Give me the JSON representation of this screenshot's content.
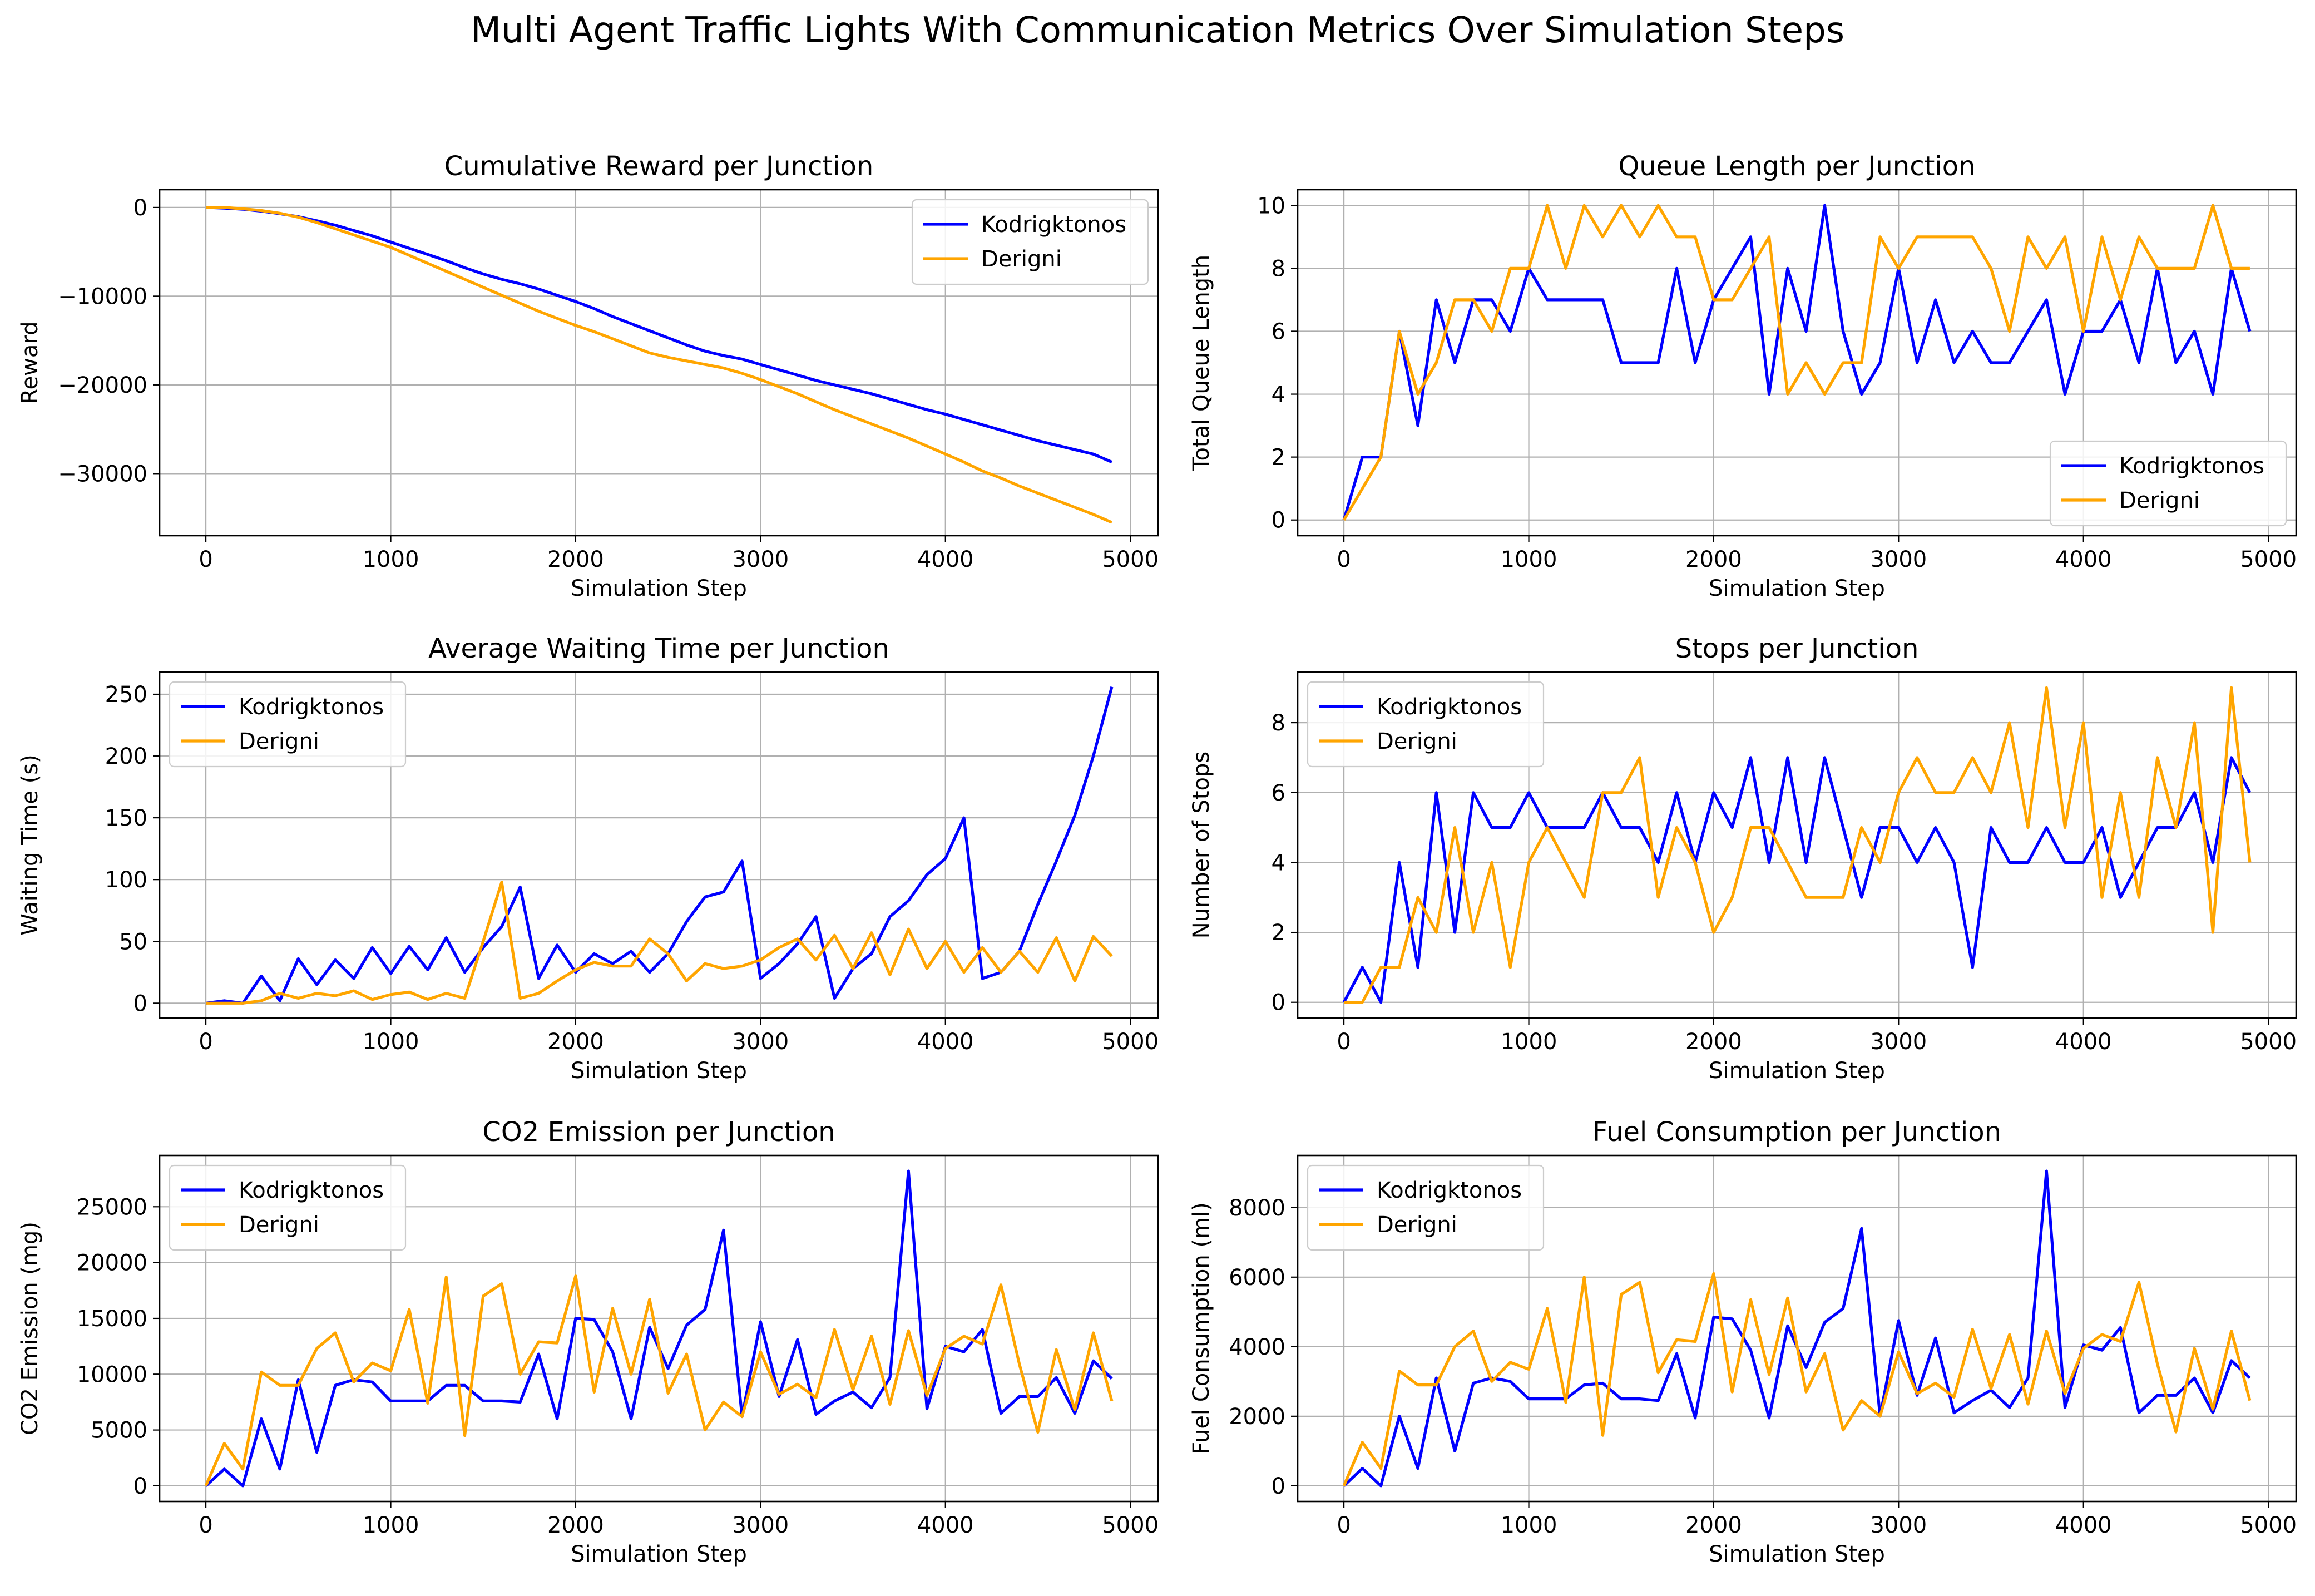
{
  "figure": {
    "suptitle": "Multi Agent Traffic Lights With Communication Metrics Over Simulation Steps"
  },
  "colors": {
    "series_a": "#0000ff",
    "series_b": "#ffa500",
    "grid": "#b0b0b0"
  },
  "chart_data": [
    {
      "type": "line",
      "title": "Cumulative Reward per Junction",
      "xlabel": "Simulation Step",
      "ylabel": "Reward",
      "xlim": [
        -250,
        5150
      ],
      "ylim": [
        -37000,
        2000
      ],
      "xticks": [
        0,
        1000,
        2000,
        3000,
        4000,
        5000
      ],
      "yticks": [
        0,
        -10000,
        -20000,
        -30000
      ],
      "grid": true,
      "legend": "top-right",
      "x": [
        0,
        100,
        200,
        300,
        400,
        500,
        600,
        700,
        800,
        900,
        1000,
        1100,
        1200,
        1300,
        1400,
        1500,
        1600,
        1700,
        1800,
        1900,
        2000,
        2100,
        2200,
        2300,
        2400,
        2500,
        2600,
        2700,
        2800,
        2900,
        3000,
        3100,
        3200,
        3300,
        3400,
        3500,
        3600,
        3700,
        3800,
        3900,
        4000,
        4100,
        4200,
        4300,
        4400,
        4500,
        4600,
        4700,
        4800,
        4900
      ],
      "series": [
        {
          "name": "Kodrigktonos",
          "color": "#0000ff",
          "values": [
            0,
            -80,
            -200,
            -420,
            -700,
            -1050,
            -1500,
            -2000,
            -2600,
            -3200,
            -3900,
            -4600,
            -5300,
            -6000,
            -6800,
            -7500,
            -8100,
            -8600,
            -9200,
            -9900,
            -10600,
            -11400,
            -12300,
            -13100,
            -13900,
            -14700,
            -15500,
            -16200,
            -16700,
            -17100,
            -17700,
            -18300,
            -18900,
            -19500,
            -20000,
            -20500,
            -21000,
            -21600,
            -22200,
            -22800,
            -23300,
            -23900,
            -24500,
            -25100,
            -25700,
            -26300,
            -26800,
            -27300,
            -27800,
            -28700
          ]
        },
        {
          "name": "Derigni",
          "color": "#ffa500",
          "values": [
            0,
            0,
            -150,
            -350,
            -650,
            -1100,
            -1700,
            -2400,
            -3100,
            -3800,
            -4500,
            -5400,
            -6300,
            -7200,
            -8100,
            -9000,
            -9900,
            -10800,
            -11700,
            -12500,
            -13300,
            -14000,
            -14800,
            -15600,
            -16400,
            -16900,
            -17300,
            -17700,
            -18100,
            -18700,
            -19400,
            -20200,
            -21000,
            -21900,
            -22800,
            -23600,
            -24400,
            -25200,
            -26000,
            -26900,
            -27800,
            -28700,
            -29700,
            -30500,
            -31400,
            -32200,
            -33000,
            -33800,
            -34600,
            -35500
          ]
        }
      ]
    },
    {
      "type": "line",
      "title": "Queue Length per Junction",
      "xlabel": "Simulation Step",
      "ylabel": "Total Queue Length",
      "xlim": [
        -250,
        5150
      ],
      "ylim": [
        -0.5,
        10.5
      ],
      "xticks": [
        0,
        1000,
        2000,
        3000,
        4000,
        5000
      ],
      "yticks": [
        0,
        2,
        4,
        6,
        8,
        10
      ],
      "grid": true,
      "legend": "bottom-right",
      "x": [
        0,
        100,
        200,
        300,
        400,
        500,
        600,
        700,
        800,
        900,
        1000,
        1100,
        1200,
        1300,
        1400,
        1500,
        1600,
        1700,
        1800,
        1900,
        2000,
        2100,
        2200,
        2300,
        2400,
        2500,
        2600,
        2700,
        2800,
        2900,
        3000,
        3100,
        3200,
        3300,
        3400,
        3500,
        3600,
        3700,
        3800,
        3900,
        4000,
        4100,
        4200,
        4300,
        4400,
        4500,
        4600,
        4700,
        4800,
        4900
      ],
      "series": [
        {
          "name": "Kodrigktonos",
          "color": "#0000ff",
          "values": [
            0,
            2,
            2,
            6,
            3,
            7,
            5,
            7,
            7,
            6,
            8,
            7,
            7,
            7,
            7,
            5,
            5,
            5,
            8,
            5,
            7,
            8,
            9,
            4,
            8,
            6,
            10,
            6,
            4,
            5,
            8,
            5,
            7,
            5,
            6,
            5,
            5,
            6,
            7,
            4,
            6,
            6,
            7,
            5,
            8,
            5,
            6,
            4,
            8,
            6
          ]
        },
        {
          "name": "Derigni",
          "color": "#ffa500",
          "values": [
            0,
            1,
            2,
            6,
            4,
            5,
            7,
            7,
            6,
            8,
            8,
            10,
            8,
            10,
            9,
            10,
            9,
            10,
            9,
            9,
            7,
            7,
            8,
            9,
            4,
            5,
            4,
            5,
            5,
            9,
            8,
            9,
            9,
            9,
            9,
            8,
            6,
            9,
            8,
            9,
            6,
            9,
            7,
            9,
            8,
            8,
            8,
            10,
            8,
            8
          ]
        }
      ]
    },
    {
      "type": "line",
      "title": "Average Waiting Time per Junction",
      "xlabel": "Simulation Step",
      "ylabel": "Waiting Time (s)",
      "xlim": [
        -250,
        5150
      ],
      "ylim": [
        -12,
        268
      ],
      "xticks": [
        0,
        1000,
        2000,
        3000,
        4000,
        5000
      ],
      "yticks": [
        0,
        50,
        100,
        150,
        200,
        250
      ],
      "grid": true,
      "legend": "top-left",
      "x": [
        0,
        100,
        200,
        300,
        400,
        500,
        600,
        700,
        800,
        900,
        1000,
        1100,
        1200,
        1300,
        1400,
        1500,
        1600,
        1700,
        1800,
        1900,
        2000,
        2100,
        2200,
        2300,
        2400,
        2500,
        2600,
        2700,
        2800,
        2900,
        3000,
        3100,
        3200,
        3300,
        3400,
        3500,
        3600,
        3700,
        3800,
        3900,
        4000,
        4100,
        4200,
        4300,
        4400,
        4500,
        4600,
        4700,
        4800,
        4900
      ],
      "series": [
        {
          "name": "Kodrigktonos",
          "color": "#0000ff",
          "values": [
            0,
            2,
            0,
            22,
            2,
            36,
            15,
            35,
            20,
            45,
            24,
            46,
            27,
            53,
            25,
            45,
            62,
            94,
            20,
            47,
            25,
            40,
            32,
            42,
            25,
            40,
            66,
            86,
            90,
            115,
            20,
            32,
            48,
            70,
            4,
            28,
            40,
            70,
            83,
            104,
            117,
            150,
            20,
            25,
            42,
            80,
            115,
            152,
            200,
            256
          ]
        },
        {
          "name": "Derigni",
          "color": "#ffa500",
          "values": [
            0,
            0,
            0,
            2,
            8,
            4,
            8,
            6,
            10,
            3,
            7,
            9,
            3,
            8,
            4,
            50,
            98,
            4,
            8,
            18,
            27,
            33,
            30,
            30,
            52,
            40,
            18,
            32,
            28,
            30,
            35,
            45,
            52,
            35,
            55,
            28,
            57,
            23,
            60,
            28,
            50,
            25,
            45,
            25,
            42,
            25,
            53,
            18,
            54,
            38
          ]
        }
      ]
    },
    {
      "type": "line",
      "title": "Stops per Junction",
      "xlabel": "Simulation Step",
      "ylabel": "Number of Stops",
      "xlim": [
        -250,
        5150
      ],
      "ylim": [
        -0.45,
        9.45
      ],
      "xticks": [
        0,
        1000,
        2000,
        3000,
        4000,
        5000
      ],
      "yticks": [
        0,
        2,
        4,
        6,
        8
      ],
      "grid": true,
      "legend": "top-left",
      "x": [
        0,
        100,
        200,
        300,
        400,
        500,
        600,
        700,
        800,
        900,
        1000,
        1100,
        1200,
        1300,
        1400,
        1500,
        1600,
        1700,
        1800,
        1900,
        2000,
        2100,
        2200,
        2300,
        2400,
        2500,
        2600,
        2700,
        2800,
        2900,
        3000,
        3100,
        3200,
        3300,
        3400,
        3500,
        3600,
        3700,
        3800,
        3900,
        4000,
        4100,
        4200,
        4300,
        4400,
        4500,
        4600,
        4700,
        4800,
        4900
      ],
      "series": [
        {
          "name": "Kodrigktonos",
          "color": "#0000ff",
          "values": [
            0,
            1,
            0,
            4,
            1,
            6,
            2,
            6,
            5,
            5,
            6,
            5,
            5,
            5,
            6,
            5,
            5,
            4,
            6,
            4,
            6,
            5,
            7,
            4,
            7,
            4,
            7,
            5,
            3,
            5,
            5,
            4,
            5,
            4,
            1,
            5,
            4,
            4,
            5,
            4,
            4,
            5,
            3,
            4,
            5,
            5,
            6,
            4,
            7,
            6
          ]
        },
        {
          "name": "Derigni",
          "color": "#ffa500",
          "values": [
            0,
            0,
            1,
            1,
            3,
            2,
            5,
            2,
            4,
            1,
            4,
            5,
            4,
            3,
            6,
            6,
            7,
            3,
            5,
            4,
            2,
            3,
            5,
            5,
            4,
            3,
            3,
            3,
            5,
            4,
            6,
            7,
            6,
            6,
            7,
            6,
            8,
            5,
            9,
            5,
            8,
            3,
            6,
            3,
            7,
            5,
            8,
            2,
            9,
            4
          ]
        }
      ]
    },
    {
      "type": "line",
      "title": "CO2 Emission per Junction",
      "xlabel": "Simulation Step",
      "ylabel": "CO2 Emission (mg)",
      "xlim": [
        -250,
        5150
      ],
      "ylim": [
        -1400,
        29600
      ],
      "xticks": [
        0,
        1000,
        2000,
        3000,
        4000,
        5000
      ],
      "yticks": [
        0,
        5000,
        10000,
        15000,
        20000,
        25000
      ],
      "grid": true,
      "legend": "top-left",
      "x": [
        0,
        100,
        200,
        300,
        400,
        500,
        600,
        700,
        800,
        900,
        1000,
        1100,
        1200,
        1300,
        1400,
        1500,
        1600,
        1700,
        1800,
        1900,
        2000,
        2100,
        2200,
        2300,
        2400,
        2500,
        2600,
        2700,
        2800,
        2900,
        3000,
        3100,
        3200,
        3300,
        3400,
        3500,
        3600,
        3700,
        3800,
        3900,
        4000,
        4100,
        4200,
        4300,
        4400,
        4500,
        4600,
        4700,
        4800,
        4900
      ],
      "series": [
        {
          "name": "Kodrigktonos",
          "color": "#0000ff",
          "values": [
            0,
            1500,
            0,
            6000,
            1500,
            9500,
            3000,
            9000,
            9500,
            9300,
            7600,
            7600,
            7600,
            9000,
            9000,
            7600,
            7600,
            7500,
            11800,
            6000,
            15000,
            14900,
            12000,
            6000,
            14200,
            10500,
            14400,
            15800,
            22900,
            6200,
            14700,
            8000,
            13100,
            6400,
            7600,
            8400,
            7000,
            9700,
            28200,
            6900,
            12500,
            12000,
            14000,
            6500,
            8000,
            8000,
            9700,
            6500,
            11200,
            9600
          ]
        },
        {
          "name": "Derigni",
          "color": "#ffa500",
          "values": [
            0,
            3800,
            1500,
            10200,
            9000,
            9000,
            12300,
            13700,
            9300,
            11000,
            10300,
            15800,
            7400,
            18700,
            4500,
            17000,
            18100,
            10000,
            12900,
            12800,
            18800,
            8400,
            15900,
            10000,
            16700,
            8300,
            11800,
            5000,
            7500,
            6200,
            12000,
            8200,
            9100,
            7900,
            14000,
            8600,
            13400,
            7300,
            13900,
            8100,
            12300,
            13400,
            12700,
            18000,
            10900,
            4800,
            12200,
            6800,
            13700,
            7600
          ]
        }
      ]
    },
    {
      "type": "line",
      "title": "Fuel Consumption per Junction",
      "xlabel": "Simulation Step",
      "ylabel": "Fuel Consumption (ml)",
      "xlim": [
        -250,
        5150
      ],
      "ylim": [
        -450,
        9500
      ],
      "xticks": [
        0,
        1000,
        2000,
        3000,
        4000,
        5000
      ],
      "yticks": [
        0,
        2000,
        4000,
        6000,
        8000
      ],
      "grid": true,
      "legend": "top-left",
      "x": [
        0,
        100,
        200,
        300,
        400,
        500,
        600,
        700,
        800,
        900,
        1000,
        1100,
        1200,
        1300,
        1400,
        1500,
        1600,
        1700,
        1800,
        1900,
        2000,
        2100,
        2200,
        2300,
        2400,
        2500,
        2600,
        2700,
        2800,
        2900,
        3000,
        3100,
        3200,
        3300,
        3400,
        3500,
        3600,
        3700,
        3800,
        3900,
        4000,
        4100,
        4200,
        4300,
        4400,
        4500,
        4600,
        4700,
        4800,
        4900
      ],
      "series": [
        {
          "name": "Kodrigktonos",
          "color": "#0000ff",
          "values": [
            0,
            500,
            0,
            2000,
            500,
            3100,
            1000,
            2950,
            3100,
            3000,
            2500,
            2500,
            2500,
            2900,
            2950,
            2500,
            2500,
            2450,
            3800,
            1950,
            4850,
            4800,
            3900,
            1950,
            4600,
            3400,
            4700,
            5100,
            7400,
            2000,
            4750,
            2600,
            4250,
            2100,
            2450,
            2750,
            2250,
            3100,
            9050,
            2250,
            4050,
            3900,
            4550,
            2100,
            2600,
            2600,
            3100,
            2100,
            3600,
            3100
          ]
        },
        {
          "name": "Derigni",
          "color": "#ffa500",
          "values": [
            0,
            1250,
            500,
            3300,
            2900,
            2900,
            4000,
            4450,
            3000,
            3550,
            3350,
            5100,
            2400,
            6000,
            1450,
            5500,
            5850,
            3250,
            4200,
            4150,
            6100,
            2700,
            5350,
            3200,
            5400,
            2700,
            3800,
            1600,
            2450,
            2000,
            3850,
            2650,
            2950,
            2550,
            4500,
            2800,
            4350,
            2350,
            4450,
            2650,
            3950,
            4350,
            4150,
            5850,
            3500,
            1550,
            3950,
            2200,
            4450,
            2450
          ]
        }
      ]
    }
  ]
}
